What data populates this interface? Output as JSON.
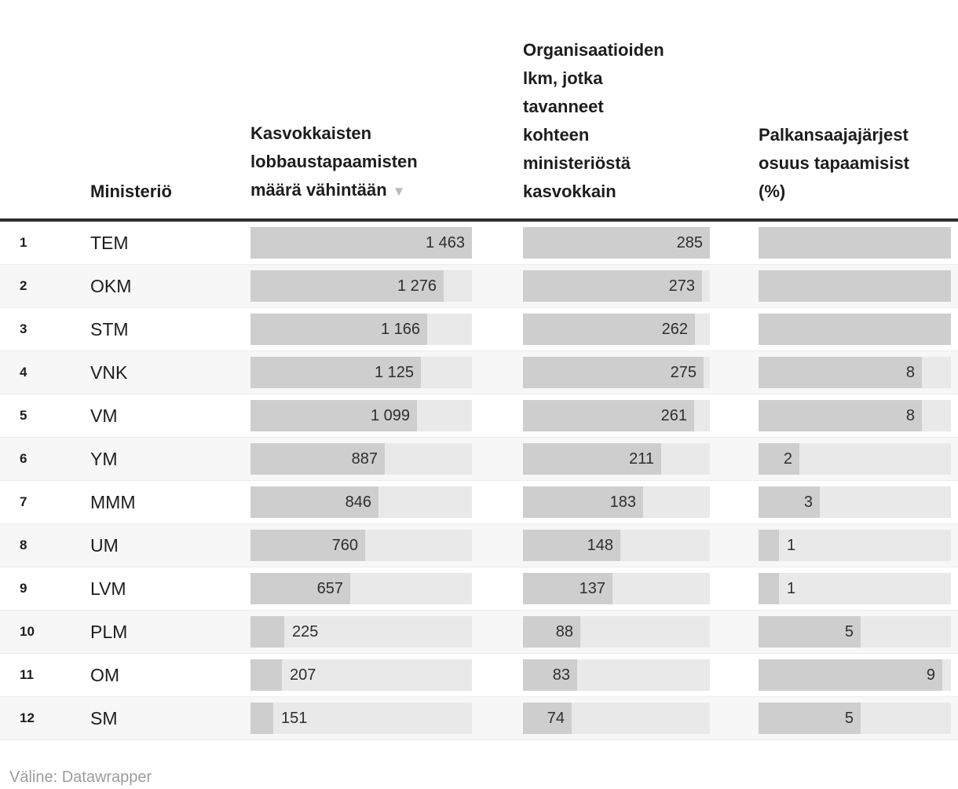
{
  "header": {
    "rank": "",
    "ministry": "Ministeriö",
    "meetings_lines": [
      "Kasvokkaisten",
      "lobbaustapaamisten"
    ],
    "meetings_last_line": "määrä vähintään",
    "sort_arrow": "▼",
    "orgs_lines": [
      "Organisaatioiden",
      "lkm, jotka",
      "tavanneet",
      "kohteen",
      "ministeriöstä",
      "kasvokkain"
    ],
    "share_lines": [
      "Palkansaajajärjest",
      "osuus tapaamisist",
      "(%)"
    ]
  },
  "rows": [
    {
      "rank": "1",
      "ministry": "TEM",
      "meetings": 1463,
      "meetings_label": "1 463",
      "orgs": 285,
      "orgs_label": "285",
      "share": null,
      "share_label": ""
    },
    {
      "rank": "2",
      "ministry": "OKM",
      "meetings": 1276,
      "meetings_label": "1 276",
      "orgs": 273,
      "orgs_label": "273",
      "share": null,
      "share_label": ""
    },
    {
      "rank": "3",
      "ministry": "STM",
      "meetings": 1166,
      "meetings_label": "1 166",
      "orgs": 262,
      "orgs_label": "262",
      "share": null,
      "share_label": ""
    },
    {
      "rank": "4",
      "ministry": "VNK",
      "meetings": 1125,
      "meetings_label": "1 125",
      "orgs": 275,
      "orgs_label": "275",
      "share": 8,
      "share_label": "8"
    },
    {
      "rank": "5",
      "ministry": "VM",
      "meetings": 1099,
      "meetings_label": "1 099",
      "orgs": 261,
      "orgs_label": "261",
      "share": 8,
      "share_label": "8"
    },
    {
      "rank": "6",
      "ministry": "YM",
      "meetings": 887,
      "meetings_label": "887",
      "orgs": 211,
      "orgs_label": "211",
      "share": 2,
      "share_label": "2"
    },
    {
      "rank": "7",
      "ministry": "MMM",
      "meetings": 846,
      "meetings_label": "846",
      "orgs": 183,
      "orgs_label": "183",
      "share": 3,
      "share_label": "3"
    },
    {
      "rank": "8",
      "ministry": "UM",
      "meetings": 760,
      "meetings_label": "760",
      "orgs": 148,
      "orgs_label": "148",
      "share": 1,
      "share_label": "1"
    },
    {
      "rank": "9",
      "ministry": "LVM",
      "meetings": 657,
      "meetings_label": "657",
      "orgs": 137,
      "orgs_label": "137",
      "share": 1,
      "share_label": "1"
    },
    {
      "rank": "10",
      "ministry": "PLM",
      "meetings": 225,
      "meetings_label": "225",
      "orgs": 88,
      "orgs_label": "88",
      "share": 5,
      "share_label": "5"
    },
    {
      "rank": "11",
      "ministry": "OM",
      "meetings": 207,
      "meetings_label": "207",
      "orgs": 83,
      "orgs_label": "83",
      "share": 9,
      "share_label": "9"
    },
    {
      "rank": "12",
      "ministry": "SM",
      "meetings": 151,
      "meetings_label": "151",
      "orgs": 74,
      "orgs_label": "74",
      "share": 5,
      "share_label": "5"
    }
  ],
  "scales": {
    "meetings_max": 1463,
    "orgs_max": 285,
    "share_max": 9.42
  },
  "footer": {
    "credit": "Väline: Datawrapper"
  },
  "colors": {
    "bar_fill": "#cecece",
    "bar_track": "#e9e9e9",
    "row_alt": "#f7f7f7",
    "header_rule": "#2d2d2d",
    "text": "#1d1d1d",
    "muted_text": "#9c9c9c",
    "sort_arrow": "#bababa"
  },
  "chart_data": {
    "type": "table",
    "categories": [
      "TEM",
      "OKM",
      "STM",
      "VNK",
      "VM",
      "YM",
      "MMM",
      "UM",
      "LVM",
      "PLM",
      "OM",
      "SM"
    ],
    "series": [
      {
        "name": "Kasvokkaisten lobbaustapaamisten määrä vähintään",
        "values": [
          1463,
          1276,
          1166,
          1125,
          1099,
          887,
          846,
          760,
          657,
          225,
          207,
          151
        ],
        "sorted": "descending",
        "bar_max": 1463
      },
      {
        "name": "Organisaatioiden lkm, jotka tavanneet kohteen ministeriöstä kasvokkain",
        "values": [
          285,
          273,
          262,
          275,
          261,
          211,
          183,
          148,
          137,
          88,
          83,
          74
        ],
        "bar_max": 285
      },
      {
        "name": "Palkansaajajärjest… osuus tapaamisist… (%)",
        "values": [
          null,
          null,
          null,
          8,
          8,
          2,
          3,
          1,
          1,
          5,
          9,
          5
        ],
        "note": "first three bars run past the clipped right edge, labels not visible",
        "bar_max": 9.42
      }
    ],
    "layout": {
      "row_numbers": true,
      "alternating_rows": true,
      "bars_in_cells": true
    },
    "footer": "Väline: Datawrapper"
  }
}
